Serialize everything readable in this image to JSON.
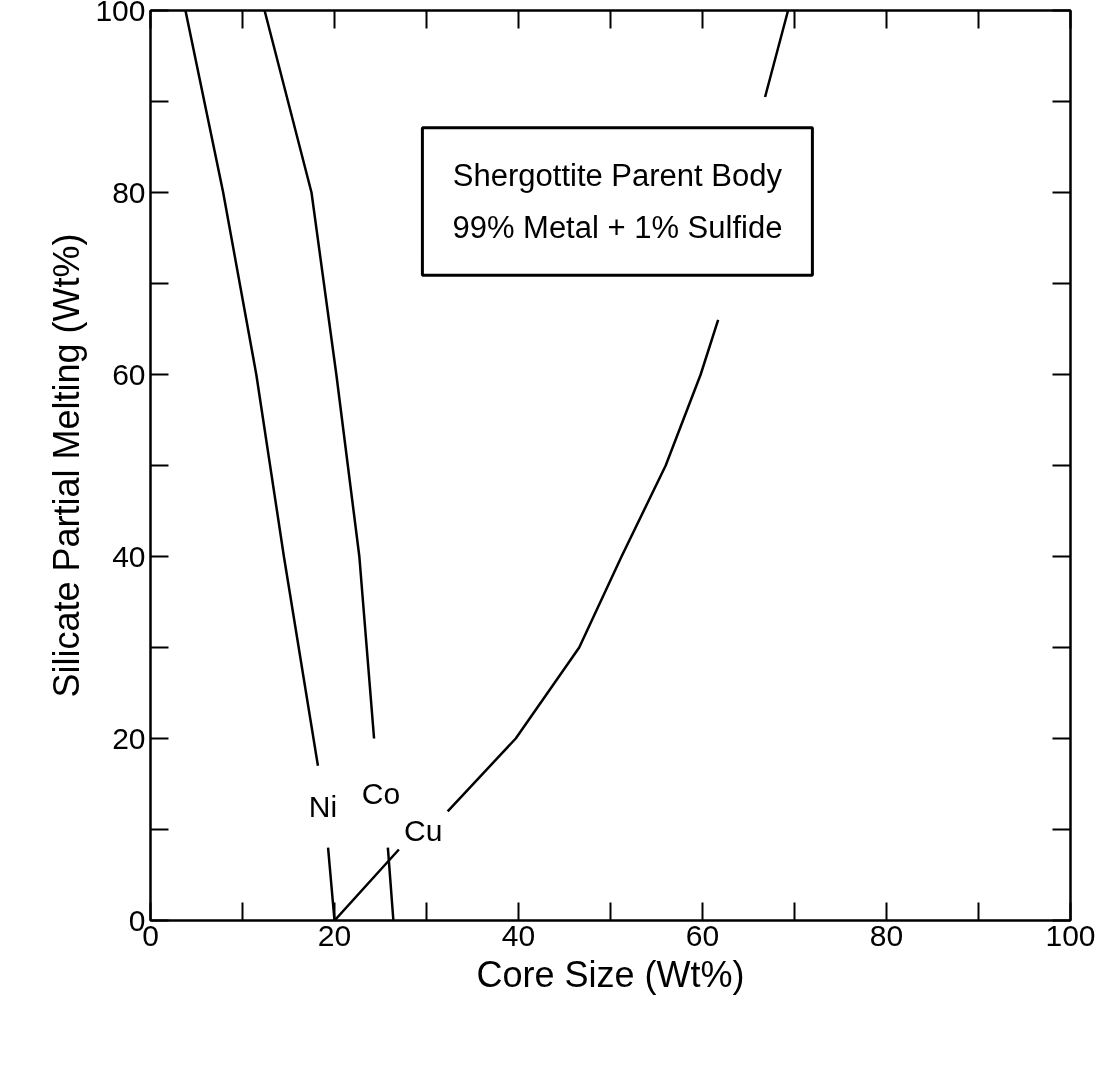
{
  "chart_data": {
    "type": "line",
    "xlabel": "Core Size (Wt%)",
    "ylabel": "Silicate Partial Melting (Wt%)",
    "annotations": [
      "Shergottite Parent Body",
      "99% Metal + 1% Sulfide"
    ],
    "xlim": [
      0,
      100
    ],
    "ylim": [
      0,
      100
    ],
    "xticks": [
      0,
      20,
      40,
      60,
      80,
      100
    ],
    "yticks": [
      0,
      20,
      40,
      60,
      80,
      100
    ],
    "grid": false,
    "marker": "none",
    "line_style": "solid",
    "series": [
      {
        "name": "Ni",
        "color": "#000000",
        "x": [
          20,
          19.3,
          null,
          18.2,
          14.5,
          11.5,
          7.9,
          3.8
        ],
        "values": [
          0,
          8,
          null,
          17,
          40,
          60,
          80,
          100
        ]
      },
      {
        "name": "Co",
        "color": "#000000",
        "x": [
          26.4,
          25.8,
          null,
          24.3,
          22.7,
          20.2,
          17.5,
          12.4
        ],
        "values": [
          0,
          8,
          null,
          20,
          40,
          60,
          80,
          100
        ]
      },
      {
        "name": "Cu",
        "color": "#000000",
        "x": [
          20,
          27,
          null,
          32.3,
          39.7,
          46.6,
          51.2,
          56,
          59.8,
          61.7,
          null,
          66.8,
          69.3
        ],
        "values": [
          0,
          7.8,
          null,
          12,
          20,
          30,
          40,
          50,
          60,
          66,
          null,
          90.5,
          100
        ]
      }
    ]
  }
}
